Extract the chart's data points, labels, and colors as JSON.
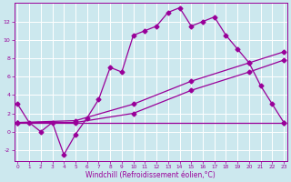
{
  "xlabel": "Windchill (Refroidissement éolien,°C)",
  "bg_color": "#cce8ee",
  "grid_color": "#ffffff",
  "line_color": "#990099",
  "x_ticks": [
    0,
    1,
    2,
    3,
    4,
    5,
    6,
    7,
    8,
    9,
    10,
    11,
    12,
    13,
    14,
    15,
    16,
    17,
    18,
    19,
    20,
    21,
    22,
    23
  ],
  "xlim": [
    -0.3,
    23.3
  ],
  "ylim": [
    -3.2,
    14.0
  ],
  "y_ticks": [
    -2,
    0,
    2,
    4,
    6,
    8,
    10,
    12
  ],
  "line1_x": [
    0,
    1,
    2,
    3,
    4,
    5,
    6,
    7,
    8,
    9,
    10,
    11,
    12,
    13,
    14,
    15,
    16,
    17,
    18,
    19,
    20,
    21,
    22,
    23
  ],
  "line1_y": [
    3,
    1,
    0,
    1,
    -2.5,
    -0.3,
    1.5,
    3.5,
    7,
    6.5,
    10.5,
    11,
    11.5,
    13,
    13.5,
    11.5,
    12,
    12.5,
    10.5,
    9,
    7.5,
    5,
    3,
    1
  ],
  "line2_x": [
    0,
    23
  ],
  "line2_y": [
    1,
    1
  ],
  "line3_x": [
    0,
    5,
    10,
    15,
    20,
    23
  ],
  "line3_y": [
    1,
    1.2,
    3.0,
    5.5,
    7.5,
    8.7
  ],
  "line4_x": [
    0,
    5,
    10,
    15,
    20,
    23
  ],
  "line4_y": [
    1,
    1.0,
    2.0,
    4.5,
    6.5,
    7.8
  ],
  "marker": "D",
  "marker_size": 2.5,
  "line_width": 0.9,
  "tick_fontsize": 4.2,
  "xlabel_fontsize": 5.5
}
